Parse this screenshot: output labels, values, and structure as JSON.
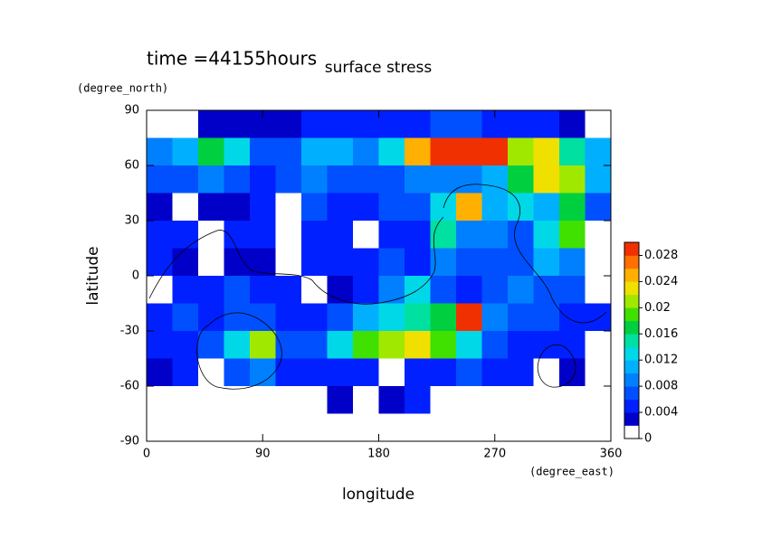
{
  "chart_data": {
    "type": "contour",
    "title": "surface stress",
    "subtitle": "time =44155hours",
    "x_label": "longitude",
    "x_units": "(degree_east)",
    "y_label": "latitude",
    "y_units": "(degree_north)",
    "xlim": [
      0,
      360
    ],
    "xticks": [
      0,
      90,
      180,
      270,
      360
    ],
    "ylim": [
      -90,
      90
    ],
    "yticks": [
      -90,
      -60,
      -30,
      0,
      30,
      60,
      90
    ],
    "x": [
      10,
      30,
      50,
      70,
      90,
      110,
      130,
      150,
      170,
      190,
      210,
      230,
      250,
      270,
      290,
      310,
      330,
      350
    ],
    "y": [
      82.5,
      67.5,
      52.5,
      37.5,
      22.5,
      7.5,
      -7.5,
      -22.5,
      -37.5,
      -52.5,
      -67.5,
      -82.5
    ],
    "z": [
      [
        0,
        0,
        0.003,
        0.003,
        0.003,
        0.003,
        0.004,
        0.004,
        0.004,
        0.004,
        0.005,
        0.006,
        0.006,
        0.005,
        0.004,
        0.004,
        0.003,
        0
      ],
      [
        0.008,
        0.01,
        0.016,
        0.012,
        0.006,
        0.007,
        0.01,
        0.01,
        0.008,
        0.012,
        0.024,
        0.03,
        0.03,
        0.028,
        0.02,
        0.022,
        0.014,
        0.01
      ],
      [
        0.006,
        0.006,
        0.008,
        0.006,
        0.004,
        0.006,
        0.008,
        0.006,
        0.006,
        0.006,
        0.008,
        0.008,
        0.008,
        0.01,
        0.016,
        0.022,
        0.02,
        0.01
      ],
      [
        0.003,
        0.001,
        0.002,
        0.003,
        0.004,
        0.001,
        0.006,
        0.004,
        0.004,
        0.006,
        0.006,
        0.012,
        0.024,
        0.01,
        0.012,
        0.01,
        0.016,
        0.006
      ],
      [
        0.004,
        0.005,
        0.001,
        0.004,
        0.005,
        0.001,
        0.004,
        0.005,
        0.001,
        0.004,
        0.005,
        0.014,
        0.008,
        0.008,
        0.006,
        0.012,
        0.018,
        0.001
      ],
      [
        0.004,
        0.003,
        0.001,
        0.003,
        0.003,
        0.001,
        0.004,
        0.005,
        0.004,
        0.006,
        0.004,
        0.008,
        0.006,
        0.006,
        0.006,
        0.01,
        0.008,
        0.001
      ],
      [
        0.001,
        0.004,
        0.004,
        0.006,
        0.005,
        0.004,
        0.001,
        0.003,
        0.004,
        0.008,
        0.012,
        0.006,
        0.005,
        0.006,
        0.008,
        0.006,
        0.006,
        0.001
      ],
      [
        0.004,
        0.006,
        0.005,
        0.006,
        0.006,
        0.004,
        0.004,
        0.006,
        0.01,
        0.012,
        0.014,
        0.016,
        0.03,
        0.008,
        0.006,
        0.006,
        0.004,
        0.004
      ],
      [
        0.005,
        0.005,
        0.006,
        0.012,
        0.02,
        0.006,
        0.006,
        0.012,
        0.018,
        0.02,
        0.022,
        0.018,
        0.012,
        0.006,
        0.005,
        0.004,
        0.004,
        0.001
      ],
      [
        0.003,
        0.004,
        0.001,
        0.006,
        0.008,
        0.004,
        0.004,
        0.004,
        0.004,
        0.001,
        0.004,
        0.004,
        0.006,
        0.004,
        0.004,
        0.001,
        0.003,
        0.001
      ],
      [
        0,
        0,
        0,
        0,
        0,
        0,
        0,
        0.003,
        0,
        0.003,
        0.004,
        0,
        0,
        0,
        0,
        0,
        0,
        0
      ],
      [
        0,
        0,
        0,
        0,
        0,
        0,
        0,
        0,
        0,
        0,
        0,
        0,
        0,
        0,
        0,
        0,
        0,
        0
      ]
    ],
    "colorbar": {
      "lim": [
        0,
        0.03
      ],
      "ticks": [
        0,
        0.004,
        0.008,
        0.012,
        0.016,
        0.02,
        0.024,
        0.028
      ],
      "colors": [
        "#ffffff",
        "#0000c8",
        "#0020ff",
        "#0050ff",
        "#0080ff",
        "#00b0ff",
        "#00d8e8",
        "#00e0a0",
        "#00d040",
        "#40e000",
        "#a0e800",
        "#f0e000",
        "#ffb000",
        "#ff7000",
        "#f03000"
      ]
    }
  }
}
